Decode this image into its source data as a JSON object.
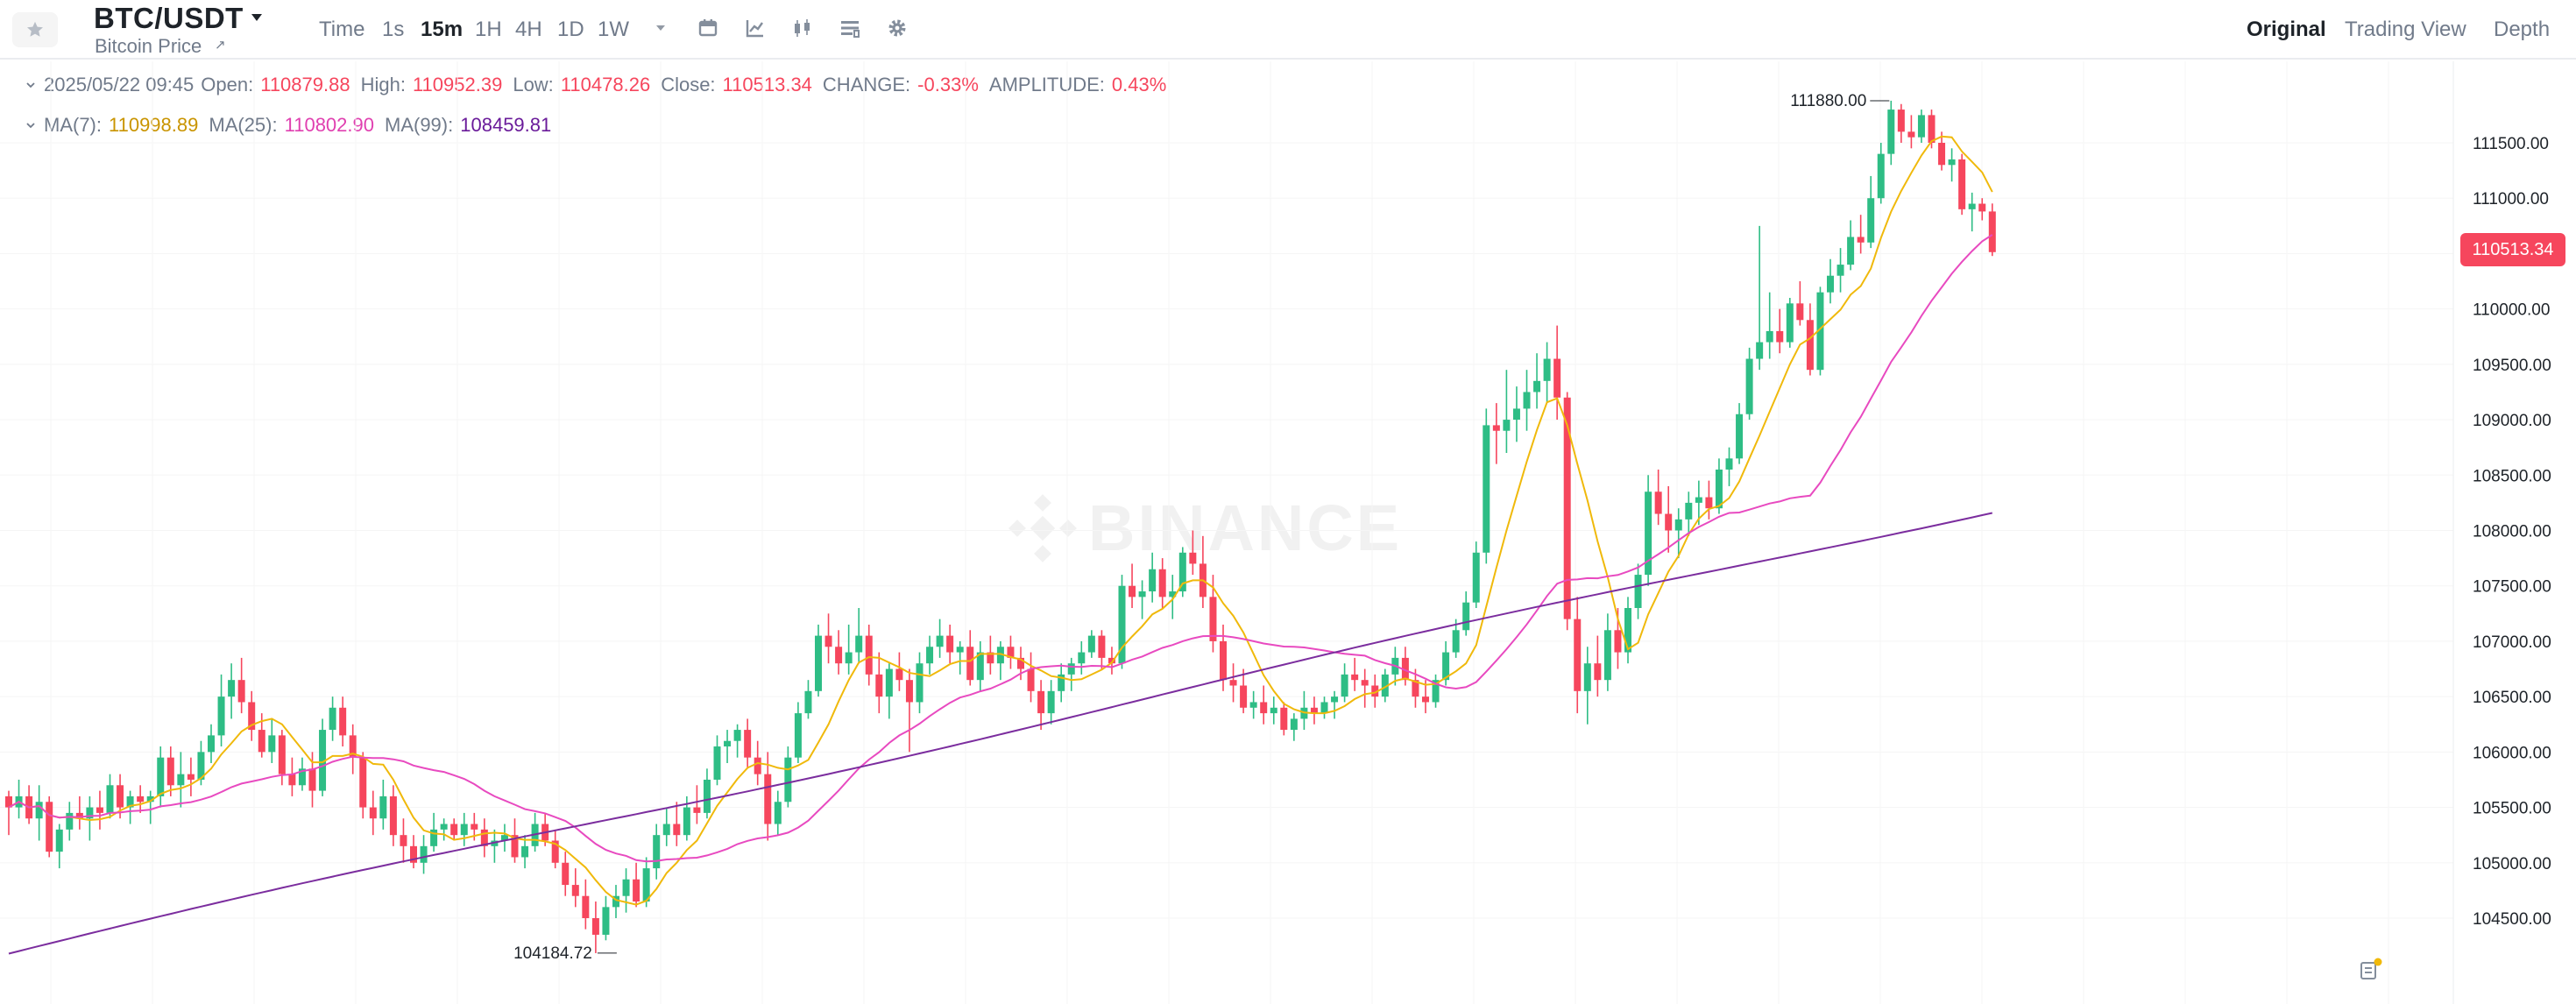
{
  "header": {
    "pair": "BTC/USDT",
    "subtitle": "Bitcoin Price",
    "subtitle_link_icon": "external-arrow-icon",
    "timeframes": [
      "Time",
      "1s",
      "15m",
      "1H",
      "4H",
      "1D",
      "1W"
    ],
    "active_timeframe": "15m",
    "toolbar_icons": [
      "more-timeframes-chevron-icon",
      "calendar-icon",
      "indicators-icon",
      "candle-type-icon",
      "layout-icon",
      "settings-icon"
    ],
    "views": [
      "Original",
      "Trading View",
      "Depth"
    ],
    "active_view": "Original"
  },
  "ohlc": {
    "time": "2025/05/22 09:45",
    "open_label": "Open:",
    "open": "110879.88",
    "high_label": "High:",
    "high": "110952.39",
    "low_label": "Low:",
    "low": "110478.26",
    "close_label": "Close:",
    "close": "110513.34",
    "change_label": "CHANGE:",
    "change": "-0.33%",
    "amplitude_label": "AMPLITUDE:",
    "amplitude": "0.43%"
  },
  "ma": {
    "ma7_label": "MA(7):",
    "ma7": "110998.89",
    "ma25_label": "MA(25):",
    "ma25": "110802.90",
    "ma99_label": "MA(99):",
    "ma99": "108459.81"
  },
  "colors": {
    "up": "#2ebd85",
    "down": "#f6465d",
    "ma7": "#f0b90b",
    "ma25": "#e84ac0",
    "ma99": "#7b2d9e",
    "ma7_text": "#c99400",
    "ma25_text": "#e040b0",
    "ma99_text": "#6a1b9a"
  },
  "watermark": "BINANCE",
  "last_price_tag": "110513.34",
  "chart_data": {
    "type": "candlestick",
    "y_axis_ticks": [
      "111500.00",
      "111000.00",
      "110500.00",
      "110000.00",
      "109500.00",
      "109000.00",
      "108500.00",
      "108000.00",
      "107500.00",
      "107000.00",
      "106500.00",
      "106000.00",
      "105500.00",
      "105000.00",
      "104500.00"
    ],
    "ylim": [
      104200,
      111800
    ],
    "annotations": {
      "high": "111880.00",
      "low": "104184.72"
    },
    "candles": [
      [
        105600,
        105650,
        105250,
        105500
      ],
      [
        105500,
        105750,
        105400,
        105600
      ],
      [
        105600,
        105700,
        105350,
        105400
      ],
      [
        105400,
        105700,
        105200,
        105550
      ],
      [
        105550,
        105600,
        105050,
        105100
      ],
      [
        105100,
        105350,
        104950,
        105300
      ],
      [
        105300,
        105550,
        105200,
        105450
      ],
      [
        105450,
        105600,
        105300,
        105400
      ],
      [
        105400,
        105600,
        105200,
        105500
      ],
      [
        105500,
        105650,
        105300,
        105450
      ],
      [
        105450,
        105800,
        105400,
        105700
      ],
      [
        105700,
        105800,
        105400,
        105500
      ],
      [
        105500,
        105650,
        105350,
        105600
      ],
      [
        105600,
        105700,
        105450,
        105550
      ],
      [
        105550,
        105650,
        105350,
        105600
      ],
      [
        105600,
        106050,
        105500,
        105950
      ],
      [
        105950,
        106050,
        105600,
        105700
      ],
      [
        105700,
        106000,
        105500,
        105800
      ],
      [
        105800,
        105950,
        105600,
        105750
      ],
      [
        105750,
        106100,
        105700,
        106000
      ],
      [
        106000,
        106250,
        105900,
        106150
      ],
      [
        106150,
        106700,
        106050,
        106500
      ],
      [
        106500,
        106800,
        106300,
        106650
      ],
      [
        106650,
        106850,
        106350,
        106450
      ],
      [
        106450,
        106550,
        106100,
        106200
      ],
      [
        106200,
        106350,
        105950,
        106000
      ],
      [
        106000,
        106300,
        105900,
        106150
      ],
      [
        106150,
        106200,
        105700,
        105800
      ],
      [
        105800,
        105950,
        105600,
        105700
      ],
      [
        105700,
        105950,
        105650,
        105850
      ],
      [
        105850,
        106000,
        105500,
        105650
      ],
      [
        105650,
        106300,
        105600,
        106200
      ],
      [
        106200,
        106500,
        106100,
        106400
      ],
      [
        106400,
        106500,
        106050,
        106150
      ],
      [
        106150,
        106250,
        105800,
        105950
      ],
      [
        105950,
        106000,
        105400,
        105500
      ],
      [
        105500,
        105650,
        105250,
        105400
      ],
      [
        105400,
        105750,
        105300,
        105600
      ],
      [
        105600,
        105700,
        105150,
        105250
      ],
      [
        105250,
        105400,
        105000,
        105150
      ],
      [
        105150,
        105250,
        104950,
        105000
      ],
      [
        105000,
        105250,
        104900,
        105150
      ],
      [
        105150,
        105450,
        105100,
        105300
      ],
      [
        105300,
        105400,
        105200,
        105350
      ],
      [
        105350,
        105400,
        105200,
        105250
      ],
      [
        105250,
        105450,
        105150,
        105350
      ],
      [
        105350,
        105450,
        105200,
        105300
      ],
      [
        105300,
        105400,
        105050,
        105150
      ],
      [
        105150,
        105300,
        105000,
        105200
      ],
      [
        105200,
        105350,
        105100,
        105250
      ],
      [
        105250,
        105400,
        105000,
        105050
      ],
      [
        105050,
        105250,
        104950,
        105150
      ],
      [
        105150,
        105450,
        105100,
        105350
      ],
      [
        105350,
        105450,
        105150,
        105200
      ],
      [
        105200,
        105300,
        104950,
        105000
      ],
      [
        105000,
        105100,
        104700,
        104800
      ],
      [
        104800,
        104950,
        104600,
        104700
      ],
      [
        104700,
        104850,
        104400,
        104500
      ],
      [
        104500,
        104650,
        104184,
        104350
      ],
      [
        104350,
        104700,
        104300,
        104600
      ],
      [
        104600,
        104800,
        104500,
        104700
      ],
      [
        104700,
        104950,
        104550,
        104850
      ],
      [
        104850,
        105000,
        104600,
        104650
      ],
      [
        104650,
        105050,
        104600,
        104950
      ],
      [
        104950,
        105350,
        104850,
        105250
      ],
      [
        105250,
        105500,
        105150,
        105350
      ],
      [
        105350,
        105550,
        105150,
        105250
      ],
      [
        105250,
        105600,
        105200,
        105500
      ],
      [
        105500,
        105700,
        105350,
        105450
      ],
      [
        105450,
        105850,
        105400,
        105750
      ],
      [
        105750,
        106150,
        105700,
        106050
      ],
      [
        106050,
        106200,
        105900,
        106100
      ],
      [
        106100,
        106250,
        105950,
        106200
      ],
      [
        106200,
        106300,
        105850,
        105950
      ],
      [
        105950,
        106100,
        105700,
        105800
      ],
      [
        105800,
        106000,
        105200,
        105350
      ],
      [
        105350,
        105650,
        105250,
        105550
      ],
      [
        105550,
        106050,
        105500,
        105950
      ],
      [
        105950,
        106450,
        105900,
        106350
      ],
      [
        106350,
        106650,
        106300,
        106550
      ],
      [
        106550,
        107150,
        106500,
        107050
      ],
      [
        107050,
        107250,
        106800,
        106950
      ],
      [
        106950,
        107100,
        106700,
        106800
      ],
      [
        106800,
        107150,
        106700,
        106900
      ],
      [
        106900,
        107300,
        106800,
        107050
      ],
      [
        107050,
        107150,
        106600,
        106700
      ],
      [
        106700,
        106900,
        106350,
        106500
      ],
      [
        106500,
        106800,
        106300,
        106750
      ],
      [
        106750,
        106900,
        106550,
        106650
      ],
      [
        106650,
        106750,
        106000,
        106450
      ],
      [
        106450,
        106900,
        106350,
        106800
      ],
      [
        106800,
        107050,
        106700,
        106950
      ],
      [
        106950,
        107200,
        106850,
        107050
      ],
      [
        107050,
        107150,
        106800,
        106900
      ],
      [
        106900,
        107000,
        106700,
        106950
      ],
      [
        106950,
        107100,
        106600,
        106650
      ],
      [
        106650,
        107000,
        106550,
        106900
      ],
      [
        106900,
        107050,
        106700,
        106800
      ],
      [
        106800,
        107000,
        106650,
        106950
      ],
      [
        106950,
        107050,
        106750,
        106850
      ],
      [
        106850,
        106950,
        106650,
        106750
      ],
      [
        106750,
        106900,
        106450,
        106550
      ],
      [
        106550,
        106650,
        106200,
        106350
      ],
      [
        106350,
        106650,
        106250,
        106550
      ],
      [
        106550,
        106800,
        106450,
        106700
      ],
      [
        106700,
        106850,
        106550,
        106800
      ],
      [
        106800,
        107000,
        106700,
        106900
      ],
      [
        106900,
        107100,
        106850,
        107050
      ],
      [
        107050,
        107100,
        106750,
        106850
      ],
      [
        106850,
        106950,
        106700,
        106800
      ],
      [
        106800,
        107600,
        106750,
        107500
      ],
      [
        107500,
        107700,
        107300,
        107400
      ],
      [
        107400,
        107550,
        107200,
        107450
      ],
      [
        107450,
        107800,
        107350,
        107650
      ],
      [
        107650,
        107750,
        107300,
        107400
      ],
      [
        107400,
        107600,
        107200,
        107450
      ],
      [
        107450,
        107850,
        107400,
        107800
      ],
      [
        107800,
        108000,
        107600,
        107700
      ],
      [
        107700,
        107950,
        107300,
        107400
      ],
      [
        107400,
        107600,
        106900,
        107000
      ],
      [
        107000,
        107150,
        106550,
        106650
      ],
      [
        106650,
        106800,
        106450,
        106600
      ],
      [
        106600,
        106750,
        106350,
        106400
      ],
      [
        106400,
        106550,
        106300,
        106450
      ],
      [
        106450,
        106600,
        106250,
        106350
      ],
      [
        106350,
        106500,
        106250,
        106400
      ],
      [
        106400,
        106450,
        106150,
        106200
      ],
      [
        106200,
        106350,
        106100,
        106300
      ],
      [
        106300,
        106550,
        106200,
        106400
      ],
      [
        106400,
        106500,
        106250,
        106350
      ],
      [
        106350,
        106500,
        106300,
        106450
      ],
      [
        106450,
        106550,
        106300,
        106500
      ],
      [
        106500,
        106800,
        106450,
        106700
      ],
      [
        106700,
        106850,
        106550,
        106650
      ],
      [
        106650,
        106750,
        106400,
        106600
      ],
      [
        106600,
        106700,
        106400,
        106500
      ],
      [
        106500,
        106750,
        106450,
        106700
      ],
      [
        106700,
        106950,
        106600,
        106850
      ],
      [
        106850,
        106950,
        106600,
        106650
      ],
      [
        106650,
        106750,
        106400,
        106500
      ],
      [
        106500,
        106650,
        106350,
        106450
      ],
      [
        106450,
        106700,
        106400,
        106650
      ],
      [
        106650,
        107000,
        106600,
        106900
      ],
      [
        106900,
        107200,
        106850,
        107100
      ],
      [
        107100,
        107450,
        107050,
        107350
      ],
      [
        107350,
        107900,
        107300,
        107800
      ],
      [
        107800,
        109100,
        107700,
        108950
      ],
      [
        108950,
        109150,
        108600,
        108900
      ],
      [
        108900,
        109450,
        108700,
        109000
      ],
      [
        109000,
        109300,
        108800,
        109100
      ],
      [
        109100,
        109450,
        108900,
        109250
      ],
      [
        109250,
        109600,
        109100,
        109350
      ],
      [
        109350,
        109700,
        109150,
        109550
      ],
      [
        109550,
        109850,
        109000,
        109200
      ],
      [
        109200,
        109250,
        107100,
        107200
      ],
      [
        107200,
        107400,
        106350,
        106550
      ],
      [
        106550,
        106950,
        106250,
        106800
      ],
      [
        106800,
        107050,
        106500,
        106650
      ],
      [
        106650,
        107250,
        106550,
        107100
      ],
      [
        107100,
        107300,
        106750,
        106900
      ],
      [
        106900,
        107400,
        106800,
        107300
      ],
      [
        107300,
        107700,
        107200,
        107600
      ],
      [
        107600,
        108500,
        107500,
        108350
      ],
      [
        108350,
        108550,
        108050,
        108150
      ],
      [
        108150,
        108400,
        107800,
        108000
      ],
      [
        108000,
        108200,
        107750,
        108100
      ],
      [
        108100,
        108350,
        107950,
        108250
      ],
      [
        108250,
        108450,
        108050,
        108300
      ],
      [
        108300,
        108450,
        108100,
        108200
      ],
      [
        108200,
        108650,
        108150,
        108550
      ],
      [
        108550,
        108750,
        108400,
        108650
      ],
      [
        108650,
        109150,
        108600,
        109050
      ],
      [
        109050,
        109650,
        109000,
        109550
      ],
      [
        109550,
        110750,
        109450,
        109700
      ],
      [
        109700,
        110150,
        109550,
        109800
      ],
      [
        109800,
        110000,
        109600,
        109700
      ],
      [
        109700,
        110100,
        109650,
        110050
      ],
      [
        110050,
        110250,
        109850,
        109900
      ],
      [
        109900,
        110050,
        109400,
        109450
      ],
      [
        109450,
        110200,
        109400,
        110150
      ],
      [
        110150,
        110450,
        110050,
        110300
      ],
      [
        110300,
        110550,
        110150,
        110400
      ],
      [
        110400,
        110800,
        110350,
        110650
      ],
      [
        110650,
        110850,
        110500,
        110600
      ],
      [
        110600,
        111200,
        110550,
        111000
      ],
      [
        111000,
        111500,
        110950,
        111400
      ],
      [
        111400,
        111880,
        111300,
        111800
      ],
      [
        111800,
        111850,
        111500,
        111600
      ],
      [
        111600,
        111750,
        111450,
        111550
      ],
      [
        111550,
        111800,
        111500,
        111750
      ],
      [
        111750,
        111800,
        111450,
        111500
      ],
      [
        111500,
        111600,
        111250,
        111300
      ],
      [
        111300,
        111450,
        111150,
        111350
      ],
      [
        111350,
        111400,
        110850,
        110900
      ],
      [
        110900,
        111050,
        110700,
        110950
      ],
      [
        110950,
        111000,
        110800,
        110880
      ],
      [
        110880,
        110952,
        110478,
        110513
      ]
    ]
  }
}
